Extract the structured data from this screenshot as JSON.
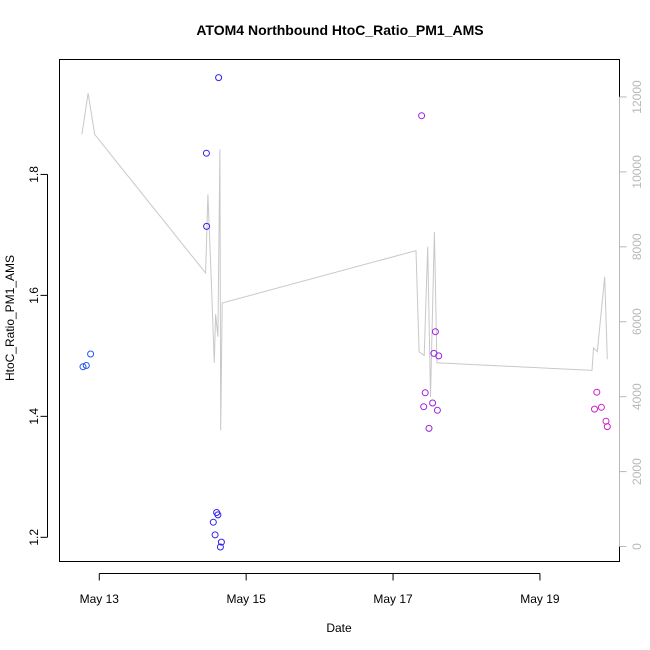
{
  "chart_data": {
    "type": "scatter",
    "title": "ATOM4 Northbound HtoC_Ratio_PM1_AMS",
    "xlabel": "Date",
    "ylabel": "HtoC_Ratio_PM1_AMS",
    "xlim": [
      "2014-05-12T11:00",
      "2014-05-20T02:00"
    ],
    "ylim": [
      1.16,
      1.99
    ],
    "x_ticks": [
      {
        "value": "2014-05-13T00:00",
        "label": "May 13"
      },
      {
        "value": "2014-05-15T00:00",
        "label": "May 15"
      },
      {
        "value": "2014-05-17T00:00",
        "label": "May 17"
      },
      {
        "value": "2014-05-19T00:00",
        "label": "May 19"
      }
    ],
    "y_ticks": [
      1.2,
      1.4,
      1.6,
      1.8
    ],
    "y2_ticks": [
      0,
      2000,
      4000,
      6000,
      8000,
      10000,
      12000
    ],
    "y2lim": [
      -400,
      13000
    ],
    "grid": false,
    "series": [
      {
        "marker": "circle",
        "points": [
          {
            "x": "2014-05-12T18:40",
            "y": 1.482,
            "color": "#2255ee"
          },
          {
            "x": "2014-05-12T19:45",
            "y": 1.484,
            "color": "#2255ee"
          },
          {
            "x": "2014-05-12T21:10",
            "y": 1.503,
            "color": "#2255ee"
          },
          {
            "x": "2014-05-14T11:00",
            "y": 1.835,
            "color": "#3322ee"
          },
          {
            "x": "2014-05-14T11:05",
            "y": 1.714,
            "color": "#3322ee"
          },
          {
            "x": "2014-05-14T13:15",
            "y": 1.225,
            "color": "#3322ee"
          },
          {
            "x": "2014-05-14T13:50",
            "y": 1.204,
            "color": "#3322ee"
          },
          {
            "x": "2014-05-14T14:20",
            "y": 1.241,
            "color": "#3322ee"
          },
          {
            "x": "2014-05-14T14:45",
            "y": 1.237,
            "color": "#3322ee"
          },
          {
            "x": "2014-05-14T15:00",
            "y": 1.96,
            "color": "#3322ee"
          },
          {
            "x": "2014-05-14T15:35",
            "y": 1.184,
            "color": "#3322ee"
          },
          {
            "x": "2014-05-14T15:55",
            "y": 1.192,
            "color": "#3322ee"
          },
          {
            "x": "2014-05-17T09:20",
            "y": 1.897,
            "color": "#9922dd"
          },
          {
            "x": "2014-05-17T10:00",
            "y": 1.416,
            "color": "#9922dd"
          },
          {
            "x": "2014-05-17T10:30",
            "y": 1.439,
            "color": "#9922dd"
          },
          {
            "x": "2014-05-17T11:45",
            "y": 1.38,
            "color": "#9922dd"
          },
          {
            "x": "2014-05-17T12:55",
            "y": 1.422,
            "color": "#9922dd"
          },
          {
            "x": "2014-05-17T13:20",
            "y": 1.504,
            "color": "#9922dd"
          },
          {
            "x": "2014-05-17T13:50",
            "y": 1.54,
            "color": "#9922dd"
          },
          {
            "x": "2014-05-17T14:30",
            "y": 1.41,
            "color": "#9922dd"
          },
          {
            "x": "2014-05-17T14:55",
            "y": 1.5,
            "color": "#9922dd"
          },
          {
            "x": "2014-05-19T17:50",
            "y": 1.412,
            "color": "#cc22cc"
          },
          {
            "x": "2014-05-19T18:35",
            "y": 1.44,
            "color": "#cc22cc"
          },
          {
            "x": "2014-05-19T20:05",
            "y": 1.415,
            "color": "#cc22cc"
          },
          {
            "x": "2014-05-19T21:35",
            "y": 1.392,
            "color": "#cc22cc"
          },
          {
            "x": "2014-05-19T22:00",
            "y": 1.383,
            "color": "#cc22cc"
          }
        ]
      },
      {
        "axis": "right",
        "type": "line",
        "color": "#c8c8c8",
        "points": [
          {
            "x": "2014-05-12T18:20",
            "y2": 11000
          },
          {
            "x": "2014-05-12T20:20",
            "y2": 12100
          },
          {
            "x": "2014-05-12T22:30",
            "y2": 11000
          },
          {
            "x": "2014-05-14T10:45",
            "y2": 7300
          },
          {
            "x": "2014-05-14T11:30",
            "y2": 9400
          },
          {
            "x": "2014-05-14T12:30",
            "y2": 7300
          },
          {
            "x": "2014-05-14T13:35",
            "y2": 4900
          },
          {
            "x": "2014-05-14T14:00",
            "y2": 6200
          },
          {
            "x": "2014-05-14T14:45",
            "y2": 5600
          },
          {
            "x": "2014-05-14T15:25",
            "y2": 10600
          },
          {
            "x": "2014-05-14T15:40",
            "y2": 3100
          },
          {
            "x": "2014-05-14T16:10",
            "y2": 6500
          },
          {
            "x": "2014-05-17T07:30",
            "y2": 7900
          },
          {
            "x": "2014-05-17T08:30",
            "y2": 5200
          },
          {
            "x": "2014-05-17T10:10",
            "y2": 5100
          },
          {
            "x": "2014-05-17T11:20",
            "y2": 8000
          },
          {
            "x": "2014-05-17T12:15",
            "y2": 4000
          },
          {
            "x": "2014-05-17T13:30",
            "y2": 8400
          },
          {
            "x": "2014-05-17T14:20",
            "y2": 4900
          },
          {
            "x": "2014-05-17T15:00",
            "y2": 4900
          },
          {
            "x": "2014-05-19T17:00",
            "y2": 4700
          },
          {
            "x": "2014-05-19T17:30",
            "y2": 5300
          },
          {
            "x": "2014-05-19T18:45",
            "y2": 5200
          },
          {
            "x": "2014-05-19T21:10",
            "y2": 7200
          },
          {
            "x": "2014-05-19T22:00",
            "y2": 5000
          }
        ]
      }
    ]
  }
}
